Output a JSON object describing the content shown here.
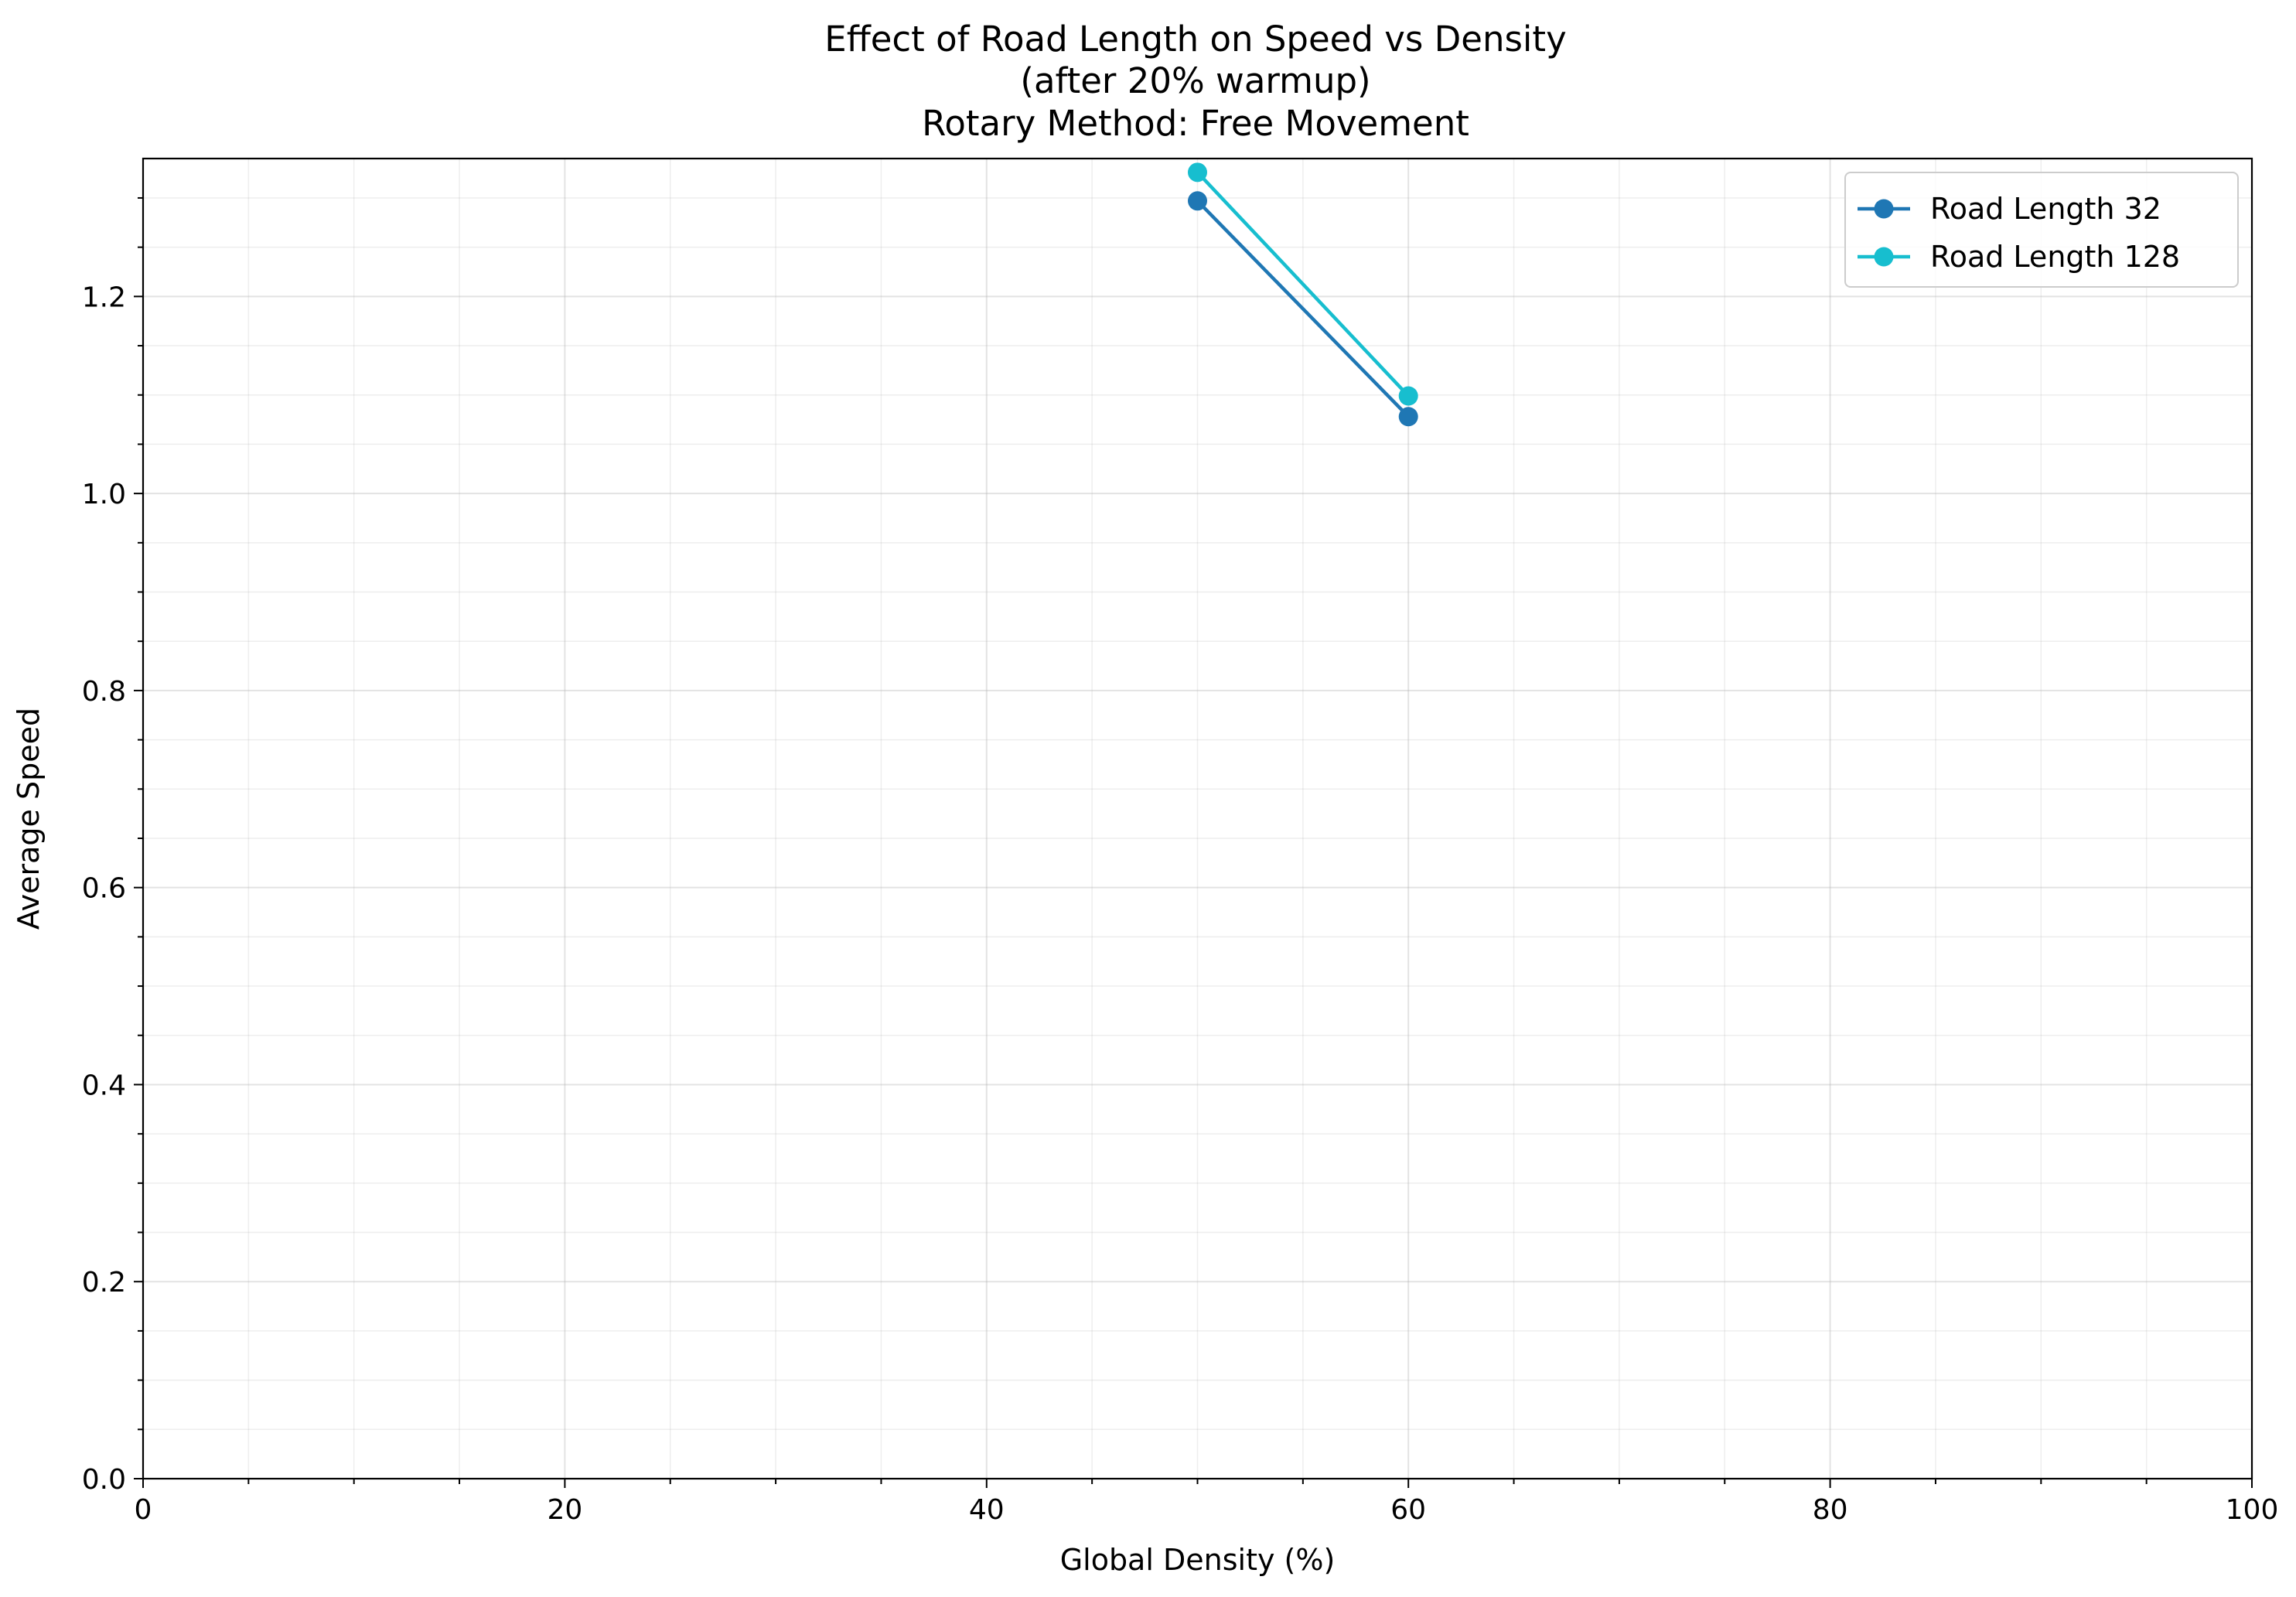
{
  "chart_data": {
    "type": "line",
    "title_lines": [
      "Effect of Road Length on Speed vs Density",
      "(after 20% warmup)",
      "Rotary Method: Free Movement"
    ],
    "xlabel": "Global Density (%)",
    "ylabel": "Average Speed",
    "xlim": [
      0,
      100
    ],
    "ylim": [
      0,
      1.34
    ],
    "xticks": [
      0,
      20,
      40,
      60,
      80,
      100
    ],
    "xtick_labels": [
      "0",
      "20",
      "40",
      "60",
      "80",
      "100"
    ],
    "yticks": [
      0.0,
      0.2,
      0.4,
      0.6,
      0.8,
      1.0,
      1.2
    ],
    "ytick_labels": [
      "0.0",
      "0.2",
      "0.4",
      "0.6",
      "0.8",
      "1.0",
      "1.2"
    ],
    "x_minor_step": 5,
    "y_minor_step": 0.05,
    "grid": true,
    "legend_position": "top-right",
    "series": [
      {
        "name": "Road Length 32",
        "color": "#1f77b4",
        "x": [
          50,
          60
        ],
        "y": [
          1.297,
          1.078
        ]
      },
      {
        "name": "Road Length 128",
        "color": "#17becf",
        "x": [
          50,
          60
        ],
        "y": [
          1.326,
          1.099
        ]
      }
    ]
  }
}
